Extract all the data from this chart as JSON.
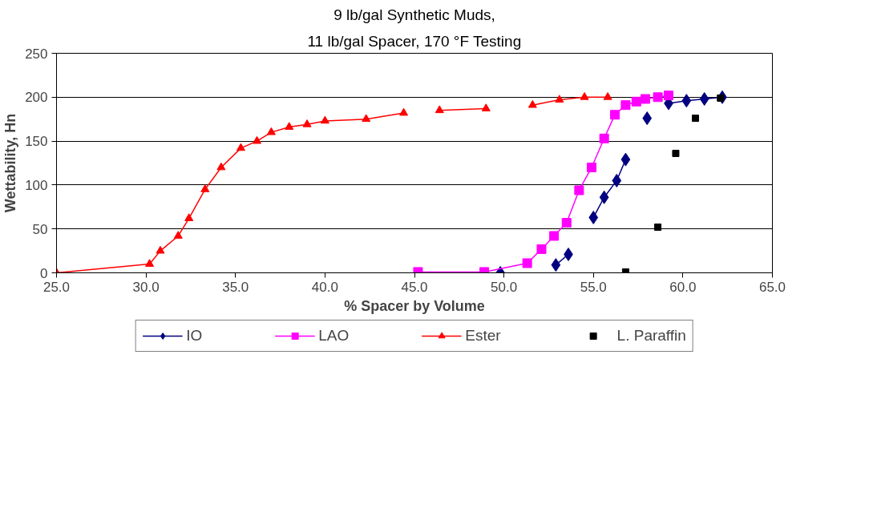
{
  "chart_data": {
    "type": "line",
    "title": "9 lb/gal Synthetic Muds,",
    "subtitle": "11 lb/gal Spacer, 170 °F Testing",
    "xlabel": "% Spacer by Volume",
    "ylabel": "Wettability, Hn",
    "xlim": [
      25,
      65
    ],
    "xticks": [
      {
        "value": 25,
        "label": "25.0"
      },
      {
        "value": 30,
        "label": "30.0"
      },
      {
        "value": 35,
        "label": "35.0"
      },
      {
        "value": 40,
        "label": "40.0"
      },
      {
        "value": 45,
        "label": "45.0"
      },
      {
        "value": 50,
        "label": "50.0"
      },
      {
        "value": 55,
        "label": "55.0"
      },
      {
        "value": 60,
        "label": "60.0"
      },
      {
        "value": 65,
        "label": "65.0"
      }
    ],
    "ylim": [
      0,
      250
    ],
    "yticks": [
      0,
      50,
      100,
      150,
      200,
      250
    ],
    "grid": "y",
    "legend": "bottom",
    "line_style": "solid",
    "series": [
      {
        "name": "IO",
        "color": "#000080",
        "marker": "diamond",
        "x": [
          49.8,
          51.0,
          52.9,
          53.6,
          54.3,
          55.0,
          55.6,
          56.3,
          56.8,
          57.4,
          58.0,
          58.6,
          59.2,
          60.2,
          61.2,
          62.2
        ],
        "values": [
          0,
          null,
          9,
          21,
          null,
          63,
          86,
          105,
          129,
          null,
          176,
          null,
          193,
          196,
          198,
          200
        ]
      },
      {
        "name": "LAO",
        "color": "#ff00ff",
        "marker": "square",
        "x": [
          45.2,
          48.9,
          51.3,
          52.1,
          52.8,
          53.5,
          54.2,
          54.9,
          55.6,
          56.2,
          56.8,
          57.4,
          57.9,
          58.6,
          59.2
        ],
        "values": [
          1,
          1,
          11,
          27,
          42,
          57,
          94,
          120,
          153,
          180,
          191,
          195,
          198,
          200,
          202
        ]
      },
      {
        "name": "Ester",
        "color": "#ff0000",
        "marker": "triangle",
        "x": [
          25,
          30.2,
          30.8,
          31.8,
          32.4,
          33.3,
          34.2,
          35.3,
          36.2,
          37.0,
          38.0,
          39.0,
          40.0,
          42.3,
          44.4,
          45.4,
          46.4,
          49.0,
          50.3,
          51.6,
          53.1,
          54.5,
          55.8
        ],
        "values": [
          0,
          10,
          25,
          42,
          62,
          95,
          120,
          142,
          150,
          160,
          166,
          169,
          173,
          175,
          182,
          null,
          185,
          187,
          null,
          191,
          197,
          200,
          200
        ]
      },
      {
        "name": "L. Paraffin",
        "type": "scatter",
        "color": "#000000",
        "marker": "square",
        "x": [
          56.8,
          58.6,
          59.6,
          60.7,
          62.1
        ],
        "values": [
          1,
          52,
          136,
          176,
          199
        ]
      }
    ]
  }
}
